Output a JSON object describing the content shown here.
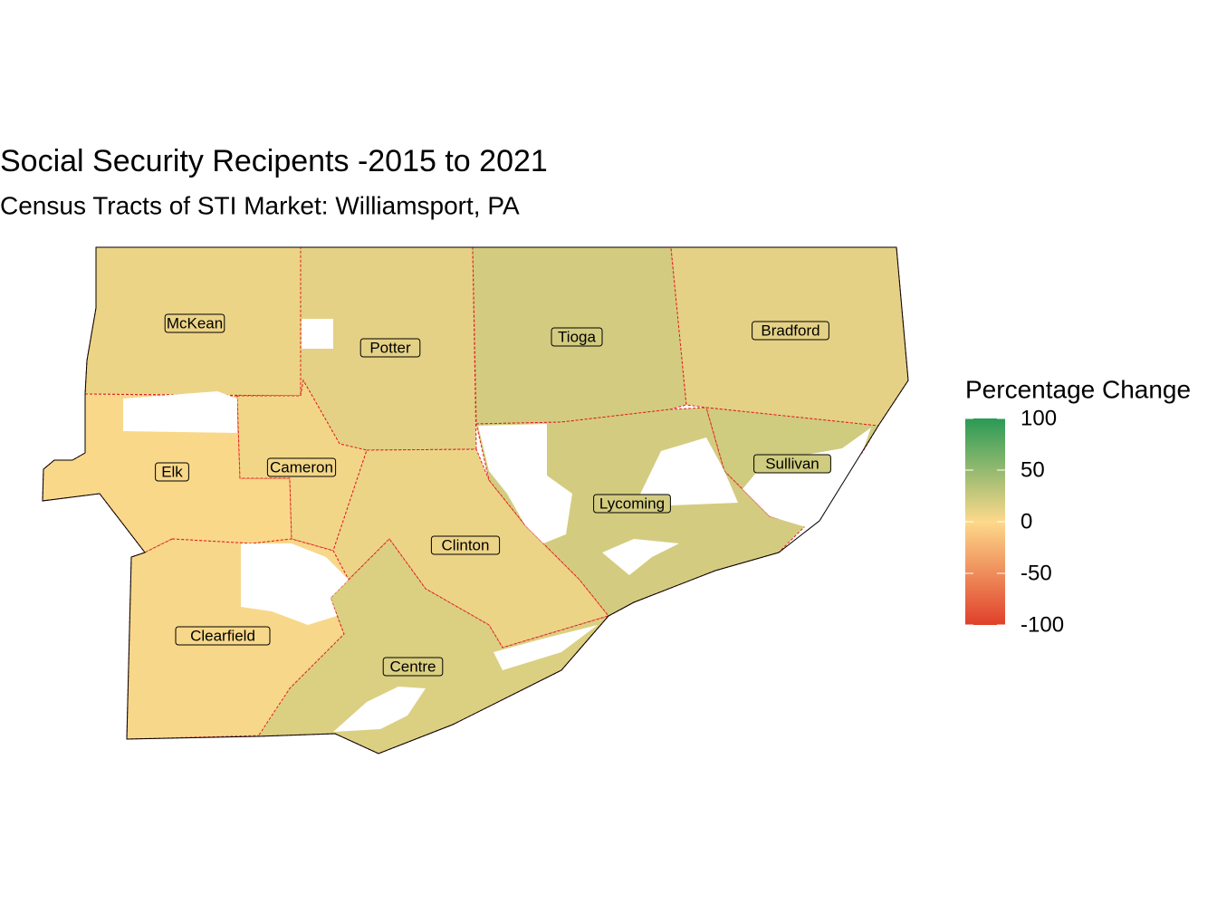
{
  "map": {
    "title": "Social Security Recipents -2015 to 2021",
    "subtitle": "Census Tracts of STI Market: Williamsport, PA",
    "legend": {
      "title": "Percentage Change",
      "limits": [
        -100,
        100
      ],
      "ticks": [
        100,
        50,
        0,
        -50,
        -100
      ],
      "colors": [
        "#e0402a",
        "#fdd98b",
        "#2a9a55"
      ]
    },
    "regions": [
      {
        "name": "McKean",
        "value": 8
      },
      {
        "name": "Potter",
        "value": 12
      },
      {
        "name": "Tioga",
        "value": 20
      },
      {
        "name": "Bradford",
        "value": 12
      },
      {
        "name": "Elk",
        "value": 2
      },
      {
        "name": "Cameron",
        "value": 5
      },
      {
        "name": "Clinton",
        "value": 8
      },
      {
        "name": "Lycoming",
        "value": 20
      },
      {
        "name": "Sullivan",
        "value": 22
      },
      {
        "name": "Clearfield",
        "value": 3
      },
      {
        "name": "Centre",
        "value": 16
      }
    ]
  }
}
